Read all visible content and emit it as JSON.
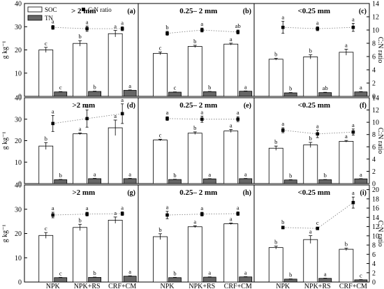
{
  "chart_data": {
    "type": "bar",
    "categories": [
      "NPK",
      "NPK+RS",
      "CRF+CM"
    ],
    "legend": {
      "soc": "SOC",
      "tn": "TN",
      "cn": "C:N ratio"
    },
    "left_axis": {
      "label": "g kg⁻¹",
      "ylim": [
        0,
        40
      ],
      "ticks": [
        0,
        10,
        20,
        30,
        40
      ]
    },
    "right_axis": {
      "label": "C:N ratio",
      "ticks_rows": [
        [
          0,
          2,
          4,
          6,
          8,
          10,
          12,
          14
        ],
        [
          0,
          2,
          4,
          6,
          8,
          10,
          12,
          14
        ],
        [
          0,
          2,
          4,
          6,
          8,
          10,
          12,
          14,
          16,
          18,
          20
        ]
      ],
      "ylim_rows": [
        [
          0,
          14
        ],
        [
          0,
          14
        ],
        [
          0,
          21
        ]
      ]
    },
    "panels": [
      {
        "label": "(a)",
        "title": "> 2 mm",
        "soc": [
          20,
          22.8,
          27
        ],
        "soc_err": [
          1.1,
          1.2,
          1.4
        ],
        "soc_letters": [
          "c",
          "b",
          "a"
        ],
        "tn": [
          1.9,
          2.1,
          2.6
        ],
        "tn_err": [
          0.15,
          0.15,
          0.15
        ],
        "tn_letters": [
          "c",
          "b",
          "a"
        ],
        "cn": [
          10.4,
          10.2,
          10.2
        ],
        "cn_err": [
          0.3,
          0.4,
          0.3
        ],
        "cn_letters": [
          "a",
          "a",
          "a"
        ]
      },
      {
        "label": "(b)",
        "title": "0.25– 2 mm",
        "soc": [
          18.5,
          21.5,
          22.5
        ],
        "soc_err": [
          0.6,
          0.5,
          0.4
        ],
        "soc_letters": [
          "c",
          "b",
          "a"
        ],
        "tn": [
          1.8,
          2.0,
          2.2
        ],
        "tn_err": [
          0.12,
          0.12,
          0.12
        ],
        "tn_letters": [
          "c",
          "b",
          "a"
        ],
        "cn": [
          9.5,
          10.0,
          9.7
        ],
        "cn_err": [
          0.3,
          0.3,
          0.3
        ],
        "cn_letters": [
          "b",
          "a",
          "ab"
        ]
      },
      {
        "label": "(c)",
        "title": "<0.25 mm",
        "soc": [
          16,
          17,
          19
        ],
        "soc_err": [
          0.4,
          0.9,
          1.3
        ],
        "soc_letters": [
          "b",
          "b",
          "a"
        ],
        "tn": [
          1.5,
          1.6,
          1.9
        ],
        "tn_err": [
          0.15,
          0.15,
          0.15
        ],
        "tn_letters": [
          "b",
          "ab",
          "a"
        ],
        "cn": [
          10.4,
          10.2,
          10.4
        ],
        "cn_err": [
          0.9,
          0.3,
          0.6
        ],
        "cn_letters": [
          "a",
          "a",
          "a"
        ]
      },
      {
        "label": "(d)",
        "title": ">2 mm",
        "soc": [
          17.5,
          23.2,
          26
        ],
        "soc_err": [
          1.6,
          0.4,
          3.6
        ],
        "soc_letters": [
          "b",
          "a",
          "a"
        ],
        "tn": [
          1.8,
          2.3,
          2.3
        ],
        "tn_err": [
          0.15,
          0.15,
          0.15
        ],
        "tn_letters": [
          "b",
          "a",
          "a"
        ],
        "cn": [
          9.8,
          10.6,
          11.4
        ],
        "cn_err": [
          1.3,
          1.4,
          1.6
        ],
        "cn_letters": [
          "a",
          "a",
          "a"
        ]
      },
      {
        "label": "(e)",
        "title": "0.25– 2 mm",
        "soc": [
          20.3,
          23.5,
          24.5
        ],
        "soc_err": [
          0.4,
          0.6,
          0.7
        ],
        "soc_letters": [
          "c",
          "b",
          "a"
        ],
        "tn": [
          1.9,
          2.2,
          2.3
        ],
        "tn_err": [
          0.12,
          0.12,
          0.12
        ],
        "tn_letters": [
          "b",
          "a",
          "a"
        ],
        "cn": [
          10.6,
          10.5,
          10.5
        ],
        "cn_err": [
          0.3,
          0.5,
          0.4
        ],
        "cn_letters": [
          "a",
          "a",
          "a"
        ]
      },
      {
        "label": "(f)",
        "title": "<0.25 mm",
        "soc": [
          16.5,
          18,
          19.7
        ],
        "soc_err": [
          1.0,
          1.2,
          0.4
        ],
        "soc_letters": [
          "b",
          "b",
          "a"
        ],
        "tn": [
          1.7,
          1.8,
          2.2
        ],
        "tn_err": [
          0.12,
          0.12,
          0.12
        ],
        "tn_letters": [
          "b",
          "b",
          "a"
        ],
        "cn": [
          8.7,
          8.1,
          8.4
        ],
        "cn_err": [
          0.4,
          0.6,
          0.5
        ],
        "cn_letters": [
          "a",
          "a",
          "a"
        ]
      },
      {
        "label": "(g)",
        "title": ">2 mm",
        "soc": [
          19.2,
          22.5,
          25.5
        ],
        "soc_err": [
          1.2,
          1.3,
          1.3
        ],
        "soc_letters": [
          "c",
          "b",
          "a"
        ],
        "tn": [
          1.8,
          1.9,
          2.4
        ],
        "tn_err": [
          0.12,
          0.12,
          0.15
        ],
        "tn_letters": [
          "c",
          "b",
          "a"
        ],
        "cn": [
          14.5,
          14.7,
          14.8
        ],
        "cn_err": [
          0.6,
          0.4,
          0.4
        ],
        "cn_letters": [
          "a",
          "a",
          "a"
        ]
      },
      {
        "label": "(h)",
        "title": "0.25– 2 mm",
        "soc": [
          18.7,
          22.8,
          24
        ],
        "soc_err": [
          1.2,
          0.4,
          0.3
        ],
        "soc_letters": [
          "b",
          "a",
          "a"
        ],
        "tn": [
          1.8,
          2.0,
          2.1
        ],
        "tn_err": [
          0.12,
          0.12,
          0.12
        ],
        "tn_letters": [
          "b",
          "a",
          "a"
        ],
        "cn": [
          14.5,
          14.7,
          14.8
        ],
        "cn_err": [
          0.8,
          0.4,
          0.4
        ],
        "cn_letters": [
          "a",
          "a",
          "a"
        ]
      },
      {
        "label": "(i)",
        "title": "<0.25 mm",
        "soc": [
          14.2,
          17.5,
          13.5
        ],
        "soc_err": [
          0.6,
          1.6,
          0.5
        ],
        "soc_letters": [
          "b",
          "a",
          "b"
        ],
        "tn": [
          1.2,
          1.5,
          0.9
        ],
        "tn_err": [
          0.1,
          0.1,
          0.1
        ],
        "tn_letters": [
          "b",
          "a",
          "c"
        ],
        "cn": [
          11.8,
          11.6,
          17.2
        ],
        "cn_err": [
          0.3,
          0.3,
          1.2
        ],
        "cn_letters": [
          "b",
          "c",
          "a"
        ]
      }
    ]
  }
}
